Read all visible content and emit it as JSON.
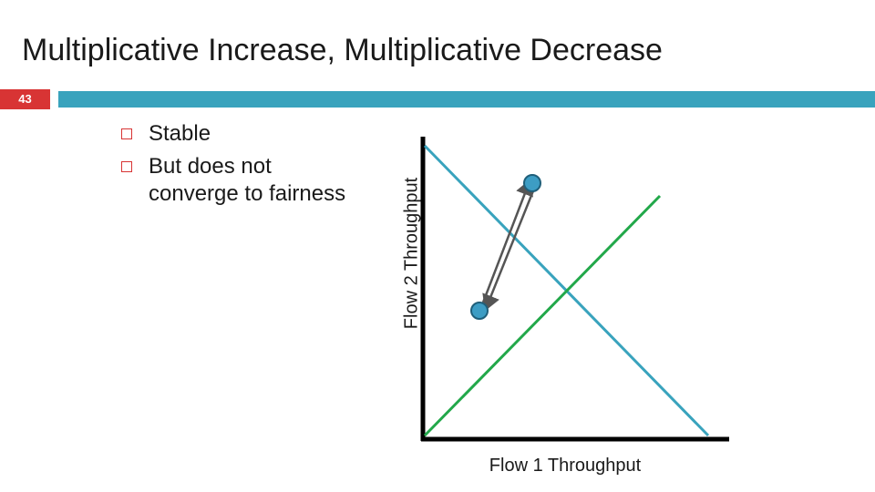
{
  "slide": {
    "title": "Multiplicative Increase, Multiplicative Decrease",
    "number": "43"
  },
  "bullets": [
    {
      "text": "Stable"
    },
    {
      "text": "But does not converge to fairness"
    }
  ],
  "diagram": {
    "x_axis_label": "Flow 1 Throughput",
    "y_axis_label": "Flow 2 Throughput",
    "lines": [
      {
        "name": "efficiency-line",
        "color": "#39a3bd"
      },
      {
        "name": "fairness-line",
        "color": "#22a84a"
      }
    ],
    "points_color": "#3d9dc4",
    "arrows_color": "#555555"
  },
  "colors": {
    "accent_red": "#d83434",
    "header_blue": "#39a3bd"
  }
}
